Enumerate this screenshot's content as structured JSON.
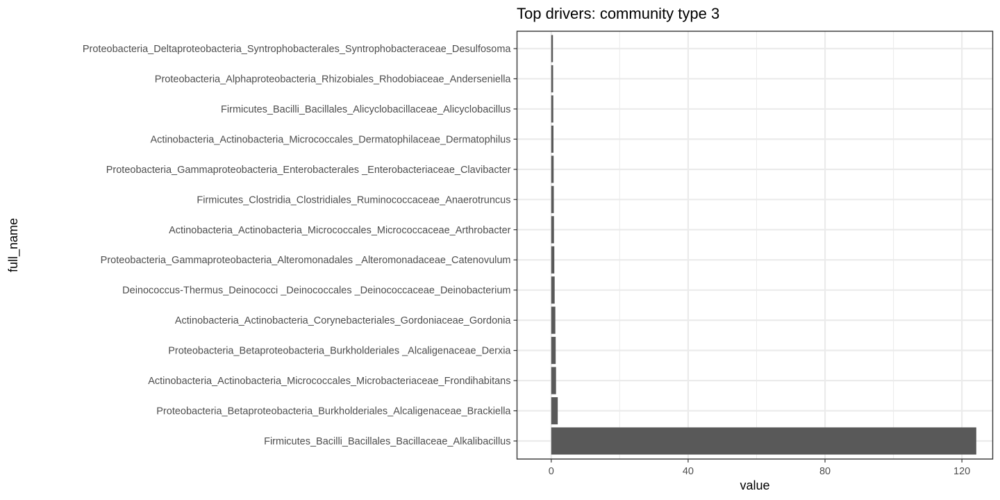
{
  "chart_data": {
    "type": "bar",
    "orientation": "horizontal",
    "title": "Top drivers: community type 3",
    "xlabel": "value",
    "ylabel": "full_name",
    "xlim": [
      -10,
      129
    ],
    "xticks": [
      0,
      40,
      80,
      120
    ],
    "grid": true,
    "bar_color": "#595959",
    "categories": [
      "Proteobacteria_Deltaproteobacteria_Syntrophobacterales_Syntrophobacteraceae_Desulfosoma",
      "Proteobacteria_Alphaproteobacteria_Rhizobiales_Rhodobiaceae_Anderseniella",
      "Firmicutes_Bacilli_Bacillales_Alicyclobacillaceae_Alicyclobacillus",
      "Actinobacteria_Actinobacteria_Micrococcales_Dermatophilaceae_Dermatophilus",
      "Proteobacteria_Gammaproteobacteria_Enterobacterales _Enterobacteriaceae_Clavibacter",
      "Firmicutes_Clostridia_Clostridiales_Ruminococcaceae_Anaerotruncus",
      "Actinobacteria_Actinobacteria_Micrococcales_Micrococcaceae_Arthrobacter",
      "Proteobacteria_Gammaproteobacteria_Alteromonadales _Alteromonadaceae_Catenovulum",
      "Deinococcus-Thermus_Deinococci _Deinococcales _Deinococcaceae_Deinobacterium",
      "Actinobacteria_Actinobacteria_Corynebacteriales_Gordoniaceae_Gordonia",
      "Proteobacteria_Betaproteobacteria_Burkholderiales _Alcaligenaceae_Derxia",
      "Actinobacteria_Actinobacteria_Micrococcales_Microbacteriaceae_Frondihabitans",
      "Proteobacteria_Betaproteobacteria_Burkholderiales_Alcaligenaceae_Brackiella",
      "Firmicutes_Bacilli_Bacillales_Bacillaceae_Alkalibacillus"
    ],
    "values": [
      0.5,
      0.55,
      0.6,
      0.65,
      0.7,
      0.75,
      0.8,
      0.9,
      1.0,
      1.2,
      1.3,
      1.4,
      1.9,
      124.2
    ]
  }
}
